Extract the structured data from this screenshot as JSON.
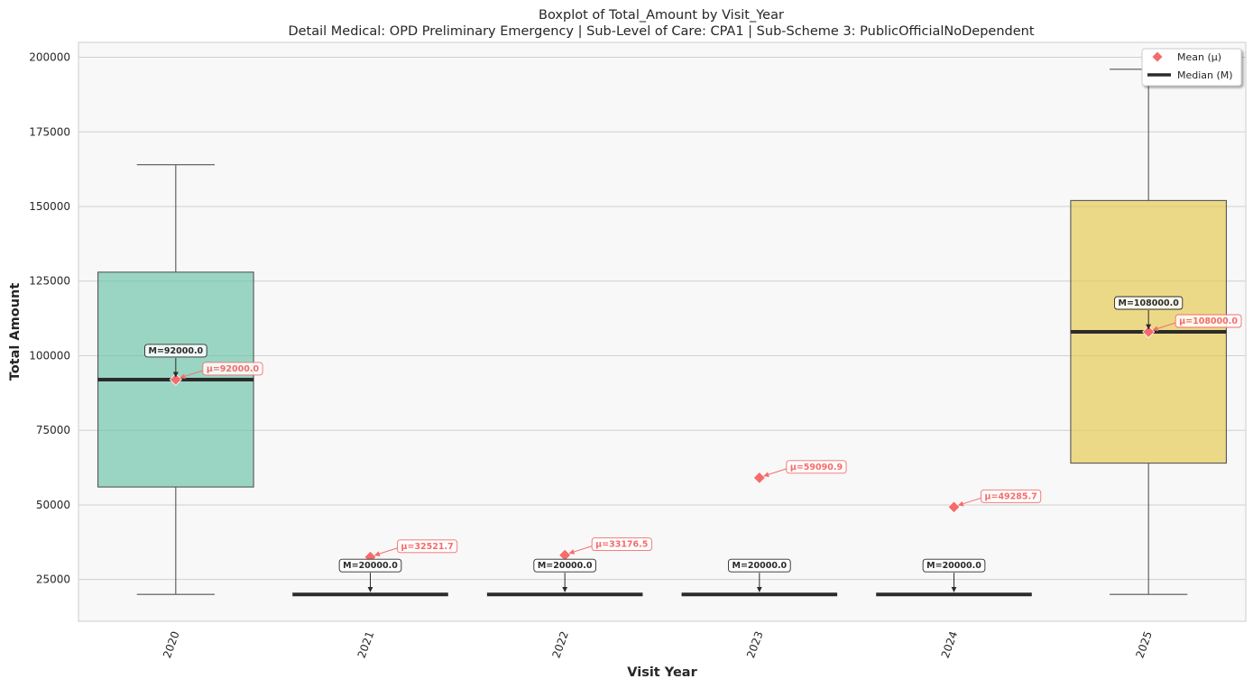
{
  "chart_data": {
    "type": "box",
    "title": "Boxplot of Total_Amount by Visit_Year",
    "subtitle": "Detail Medical: OPD Preliminary Emergency | Sub-Level of Care: CPA1 | Sub-Scheme 3: PublicOfficialNoDependent",
    "xlabel": "Visit Year",
    "ylabel": "Total Amount",
    "ylim": [
      11000,
      205000
    ],
    "yticks": [
      25000,
      50000,
      75000,
      100000,
      125000,
      150000,
      175000,
      200000
    ],
    "grid": true,
    "legend_position": "top-right",
    "legend": [
      {
        "label": "Mean (μ)",
        "marker": "diamond",
        "color": "#f56c6c"
      },
      {
        "label": "Median (M)",
        "marker": "line",
        "color": "#2b2b2b"
      }
    ],
    "categories": [
      "2020",
      "2021",
      "2022",
      "2023",
      "2024",
      "2025"
    ],
    "boxes": [
      {
        "category": "2020",
        "whisker_low": 20000,
        "q1": 56000,
        "median": 92000,
        "q3": 128000,
        "whisker_high": 164000,
        "mean": 92000,
        "color": "#66c2a5",
        "median_label": "M=92000.0",
        "mean_label": "μ=92000.0"
      },
      {
        "category": "2021",
        "whisker_low": 20000,
        "q1": 20000,
        "median": 20000,
        "q3": 20000,
        "whisker_high": 20000,
        "mean": 32521.7,
        "color": "#fc8d62",
        "median_label": "M=20000.0",
        "mean_label": "μ=32521.7"
      },
      {
        "category": "2022",
        "whisker_low": 20000,
        "q1": 20000,
        "median": 20000,
        "q3": 20000,
        "whisker_high": 20000,
        "mean": 33176.5,
        "color": "#8da0cb",
        "median_label": "M=20000.0",
        "mean_label": "μ=33176.5"
      },
      {
        "category": "2023",
        "whisker_low": 20000,
        "q1": 20000,
        "median": 20000,
        "q3": 20000,
        "whisker_high": 20000,
        "mean": 59090.9,
        "color": "#e78ac3",
        "median_label": "M=20000.0",
        "mean_label": "μ=59090.9"
      },
      {
        "category": "2024",
        "whisker_low": 20000,
        "q1": 20000,
        "median": 20000,
        "q3": 20000,
        "whisker_high": 20000,
        "mean": 49285.7,
        "color": "#a6d854",
        "median_label": "M=20000.0",
        "mean_label": "μ=49285.7"
      },
      {
        "category": "2025",
        "whisker_low": 20000,
        "q1": 64000,
        "median": 108000,
        "q3": 152000,
        "whisker_high": 196000,
        "mean": 108000,
        "color": "#e5c84a",
        "median_label": "M=108000.0",
        "mean_label": "μ=108000.0"
      }
    ],
    "colors": {
      "mean": "#f56c6c",
      "median": "#2b2b2b",
      "plot_background": "#f8f8f8",
      "grid": "#d0d0d0"
    }
  }
}
